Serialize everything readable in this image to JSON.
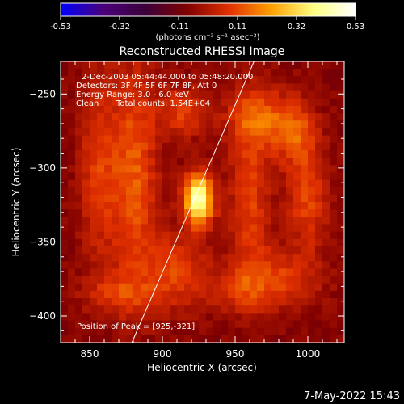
{
  "chart_data": {
    "type": "heatmap",
    "title": "Reconstructed RHESSI Image",
    "xlabel": "Heliocentric X (arcsec)",
    "ylabel": "Heliocentric Y (arcsec)",
    "xlim": [
      830,
      1025
    ],
    "ylim": [
      -418,
      -228
    ],
    "x_ticks": [
      850,
      900,
      950,
      1000
    ],
    "y_ticks": [
      -250,
      -300,
      -350,
      -400
    ],
    "colorbar": {
      "min": -0.53,
      "max": 0.53,
      "ticks": [
        "-0.53",
        "-0.32",
        "-0.11",
        "0.11",
        "0.32",
        "0.53"
      ],
      "unit_label": "(photons cm⁻² s⁻¹ asec⁻²)",
      "colormap": [
        "#0000ff",
        "#4a007a",
        "#3a003a",
        "#800000",
        "#e03000",
        "#ffa000",
        "#ffff80",
        "#ffffff"
      ]
    },
    "annotations": {
      "time_range": "2-Dec-2003 05:44:44.000 to 05:48:20.000",
      "detectors": "Detectors: 3F 4F 5F 6F 7F 8F, Att 0",
      "energy": "Energy Range: 3.0 - 6.0 keV",
      "clean": "Clean",
      "counts": "Total counts: 1.54E+04",
      "peak_label": "Position of Peak = [925,-321]"
    },
    "peak": {
      "x": 925,
      "y": -321,
      "value": 0.53
    },
    "limb_line": {
      "x1": 879,
      "y1": -418,
      "x2": 963,
      "y2": -228
    },
    "features": [
      {
        "x": 925,
        "y": -321,
        "sx": 7,
        "sy": 12,
        "amp": 0.53
      },
      {
        "x": 880,
        "y": -305,
        "sx": 12,
        "sy": 55,
        "amp": 0.2
      },
      {
        "x": 855,
        "y": -300,
        "sx": 9,
        "sy": 45,
        "amp": 0.14
      },
      {
        "x": 915,
        "y": -262,
        "sx": 12,
        "sy": 12,
        "amp": 0.16
      },
      {
        "x": 910,
        "y": -370,
        "sx": 15,
        "sy": 18,
        "amp": 0.16
      },
      {
        "x": 965,
        "y": -265,
        "sx": 14,
        "sy": 14,
        "amp": 0.18
      },
      {
        "x": 960,
        "y": -320,
        "sx": 10,
        "sy": 40,
        "amp": 0.16
      },
      {
        "x": 990,
        "y": -275,
        "sx": 11,
        "sy": 16,
        "amp": 0.18
      },
      {
        "x": 1000,
        "y": -320,
        "sx": 10,
        "sy": 25,
        "amp": 0.17
      },
      {
        "x": 980,
        "y": -375,
        "sx": 20,
        "sy": 14,
        "amp": 0.15
      },
      {
        "x": 950,
        "y": -383,
        "sx": 15,
        "sy": 10,
        "amp": 0.1
      },
      {
        "x": 870,
        "y": -385,
        "sx": 18,
        "sy": 10,
        "amp": 0.12
      }
    ],
    "grid": false
  },
  "footer": {
    "timestamp": "7-May-2022 15:43"
  }
}
